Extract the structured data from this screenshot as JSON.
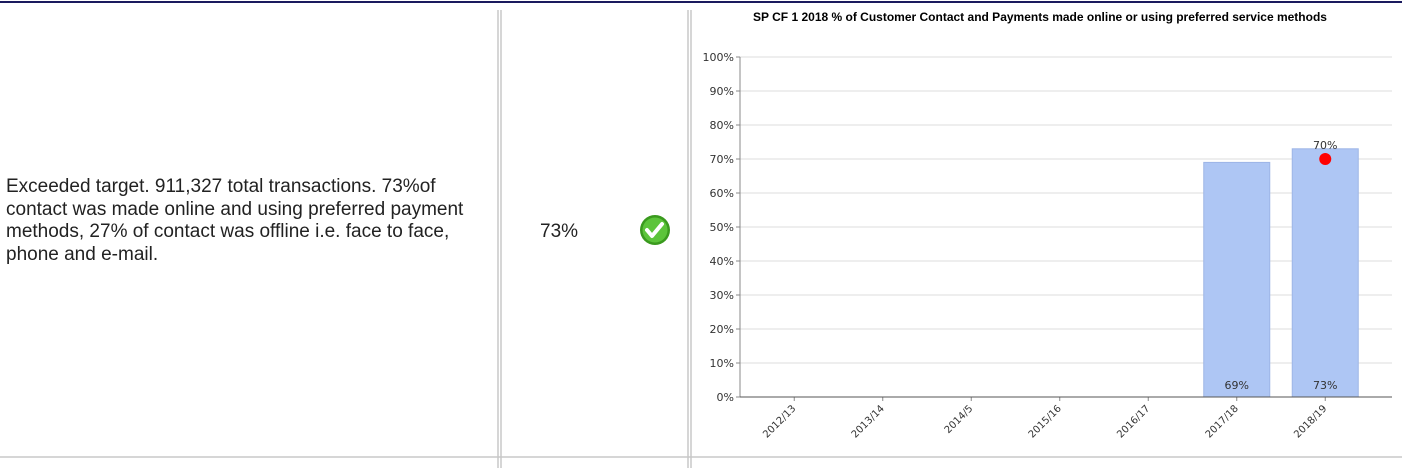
{
  "row": {
    "comment": "Exceeded target. 911,327 total transactions. 73%of contact was made online and using preferred payment methods, 27% of contact was offline i.e. face to face, phone and e-mail.",
    "actual": "73%"
  },
  "chart_data": {
    "type": "bar",
    "title": "SP CF 1 2018 % of Customer Contact and Payments made online or using preferred service methods",
    "categories": [
      "2012/13",
      "2013/14",
      "2014/5",
      "2015/16",
      "2016/17",
      "2017/18",
      "2018/19"
    ],
    "values": [
      null,
      null,
      null,
      null,
      null,
      69,
      73
    ],
    "value_labels": [
      null,
      null,
      null,
      null,
      null,
      "69%",
      "73%"
    ],
    "color": "#aec6f4",
    "target_values": [
      null,
      null,
      null,
      null,
      null,
      null,
      70
    ],
    "target_labels": [
      null,
      null,
      null,
      null,
      null,
      null,
      "70%"
    ],
    "target_color": "#ff0000",
    "ylim": [
      0,
      100
    ],
    "yticks": [
      {
        "value": 0,
        "label": "0%"
      },
      {
        "value": 10,
        "label": "10%"
      },
      {
        "value": 20,
        "label": "20%"
      },
      {
        "value": 30,
        "label": "30%"
      },
      {
        "value": 40,
        "label": "40%"
      },
      {
        "value": 50,
        "label": "50%"
      },
      {
        "value": 60,
        "label": "60%"
      },
      {
        "value": 70,
        "label": "70%"
      },
      {
        "value": 80,
        "label": "80%"
      },
      {
        "value": 90,
        "label": "90%"
      },
      {
        "value": 100,
        "label": "100%"
      }
    ],
    "grid": true
  }
}
